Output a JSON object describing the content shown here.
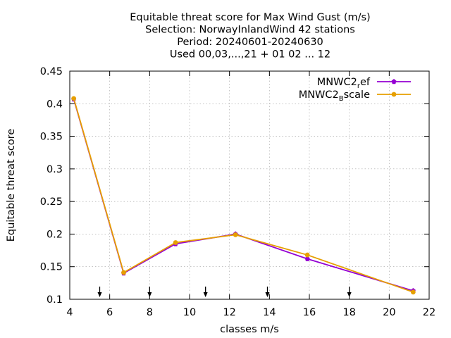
{
  "chart_data": {
    "type": "line",
    "title_lines": [
      "Equitable threat score  for Max Wind Gust (m/s)",
      "Selection: NorwayInlandWind     42 stations",
      "Period: 20240601-20240630",
      "Used 00,03,...,21 + 01 02 ... 12"
    ],
    "xlabel": "classes m/s",
    "ylabel": "Equitable threat score",
    "xlim": [
      4,
      22
    ],
    "ylim": [
      0.1,
      0.45
    ],
    "xticks": [
      4,
      6,
      8,
      10,
      12,
      14,
      16,
      18,
      20,
      22
    ],
    "xtick_labels": [
      "4",
      "6",
      "8",
      "10",
      "12",
      "14",
      "16",
      "18",
      "20",
      "22"
    ],
    "yticks": [
      0.1,
      0.15,
      0.2,
      0.25,
      0.3,
      0.35,
      0.4,
      0.45
    ],
    "ytick_labels": [
      "0.1",
      "0.15",
      "0.2",
      "0.25",
      "0.3",
      "0.35",
      "0.4",
      "0.45"
    ],
    "grid": true,
    "legend_position": "top-right",
    "class_markers_x": [
      5.5,
      8.0,
      10.8,
      13.9,
      18.0
    ],
    "series": [
      {
        "legend_main": "MNWC2",
        "legend_sub": "r",
        "legend_tail": "ef",
        "color": "#9400d3",
        "x": [
          4.2,
          6.7,
          9.3,
          12.3,
          15.9,
          21.2
        ],
        "y": [
          0.407,
          0.14,
          0.185,
          0.2,
          0.162,
          0.113
        ]
      },
      {
        "legend_main": "MNWC2",
        "legend_sub": "B",
        "legend_tail": "scale",
        "color": "#e69f00",
        "x": [
          4.2,
          6.7,
          9.3,
          12.3,
          15.9,
          21.2
        ],
        "y": [
          0.408,
          0.141,
          0.187,
          0.199,
          0.168,
          0.111
        ]
      }
    ]
  }
}
